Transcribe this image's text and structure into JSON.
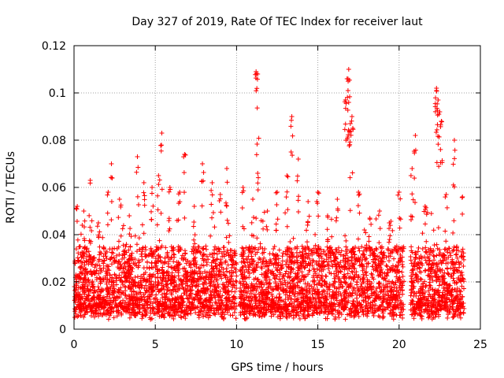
{
  "chart_data": {
    "type": "scatter",
    "title": "Day 327 of 2019, Rate Of TEC Index for receiver laut",
    "xlabel": "GPS time / hours",
    "ylabel": "ROTI / TECUs",
    "xlim": [
      0,
      25
    ],
    "ylim": [
      0,
      0.12
    ],
    "xticks": [
      0,
      5,
      10,
      15,
      20,
      25
    ],
    "yticks": [
      0,
      0.02,
      0.04,
      0.06,
      0.08,
      0.1,
      0.12
    ],
    "xtick_labels": [
      "0",
      "5",
      "10",
      "15",
      "20",
      "25"
    ],
    "ytick_labels": [
      "0",
      "0.02",
      "0.04",
      "0.06",
      "0.08",
      "0.1",
      "0.12"
    ],
    "grid": true,
    "marker": "+",
    "color": "#ff0000",
    "series": [
      {
        "x": [
          0.1,
          0.3,
          0.5,
          0.7,
          0.9,
          1.1,
          1.4,
          1.7,
          2.0,
          2.2,
          2.4,
          2.7,
          3.0,
          3.3,
          3.6,
          3.8,
          4.1,
          4.4,
          4.7,
          5.0,
          5.2,
          5.5,
          5.8,
          6.1,
          6.4,
          6.6,
          6.9,
          7.2,
          7.5,
          7.8,
          8.0,
          8.3,
          8.6,
          8.9,
          9.2,
          9.5,
          9.7,
          10.3,
          10.6,
          10.9,
          11.2,
          11.5,
          11.8,
          12.1,
          12.4,
          12.7,
          13.0,
          13.3,
          13.6,
          13.9,
          14.2,
          14.5,
          14.8,
          15.1,
          15.4,
          15.7,
          16.0,
          16.3,
          16.6,
          16.8,
          17.0,
          17.2,
          17.4,
          17.7,
          18.0,
          18.3,
          18.6,
          18.9,
          19.2,
          19.5,
          19.8,
          20.1,
          20.9,
          21.2,
          21.5,
          21.8,
          22.1,
          22.4,
          22.7,
          23.0,
          23.3,
          23.6,
          23.8
        ],
        "y": [
          0.015,
          0.02,
          0.018,
          0.022,
          0.016,
          0.019,
          0.021,
          0.017,
          0.02,
          0.023,
          0.018,
          0.016,
          0.019,
          0.022,
          0.021,
          0.018,
          0.02,
          0.024,
          0.019,
          0.022,
          0.02,
          0.018,
          0.023,
          0.021,
          0.017,
          0.019,
          0.022,
          0.02,
          0.018,
          0.021,
          0.019,
          0.023,
          0.02,
          0.018,
          0.017,
          0.019,
          0.016,
          0.016,
          0.018,
          0.015,
          0.017,
          0.019,
          0.016,
          0.018,
          0.02,
          0.017,
          0.019,
          0.016,
          0.018,
          0.015,
          0.017,
          0.016,
          0.019,
          0.015,
          0.016,
          0.018,
          0.015,
          0.02,
          0.022,
          0.019,
          0.018,
          0.021,
          0.02,
          0.016,
          0.017,
          0.015,
          0.014,
          0.016,
          0.018,
          0.013,
          0.014,
          0.012,
          0.014,
          0.013,
          0.015,
          0.012,
          0.014,
          0.016,
          0.013,
          0.015,
          0.014,
          0.016,
          0.013
        ]
      },
      {
        "x": [
          0.2,
          0.6,
          1.0,
          1.5,
          2.1,
          2.3,
          2.8,
          3.4,
          3.9,
          4.3,
          4.8,
          5.2,
          5.4,
          5.9,
          6.5,
          6.8,
          7.4,
          7.9,
          8.5,
          9.0,
          9.4,
          10.4,
          11.0,
          11.3,
          11.9,
          12.5,
          13.1,
          13.4,
          13.8,
          14.4,
          15.0,
          15.6,
          16.2,
          16.7,
          16.9,
          17.1,
          17.5,
          18.2,
          18.8,
          19.4,
          20.0,
          20.8,
          21.0,
          21.6,
          22.3,
          22.9,
          23.4,
          23.9
        ],
        "y": [
          0.052,
          0.05,
          0.063,
          0.045,
          0.058,
          0.07,
          0.055,
          0.048,
          0.073,
          0.062,
          0.06,
          0.065,
          0.083,
          0.06,
          0.058,
          0.074,
          0.052,
          0.07,
          0.062,
          0.057,
          0.068,
          0.06,
          0.055,
          0.066,
          0.05,
          0.058,
          0.065,
          0.09,
          0.072,
          0.054,
          0.058,
          0.048,
          0.055,
          0.097,
          0.11,
          0.09,
          0.058,
          0.047,
          0.05,
          0.045,
          0.058,
          0.068,
          0.082,
          0.052,
          0.102,
          0.057,
          0.08,
          0.056
        ]
      },
      {
        "x": [
          11.2,
          11.3,
          16.8,
          16.9,
          17.0,
          22.3,
          22.4,
          22.5,
          22.6
        ],
        "y": [
          0.109,
          0.108,
          0.106,
          0.096,
          0.087,
          0.101,
          0.097,
          0.092,
          0.088
        ]
      }
    ],
    "dense_band": {
      "segments": [
        [
          0,
          10.0
        ],
        [
          10.2,
          20.3
        ],
        [
          20.7,
          24.0
        ]
      ],
      "baseline_min": 0.004,
      "typical_max": 0.035
    }
  }
}
